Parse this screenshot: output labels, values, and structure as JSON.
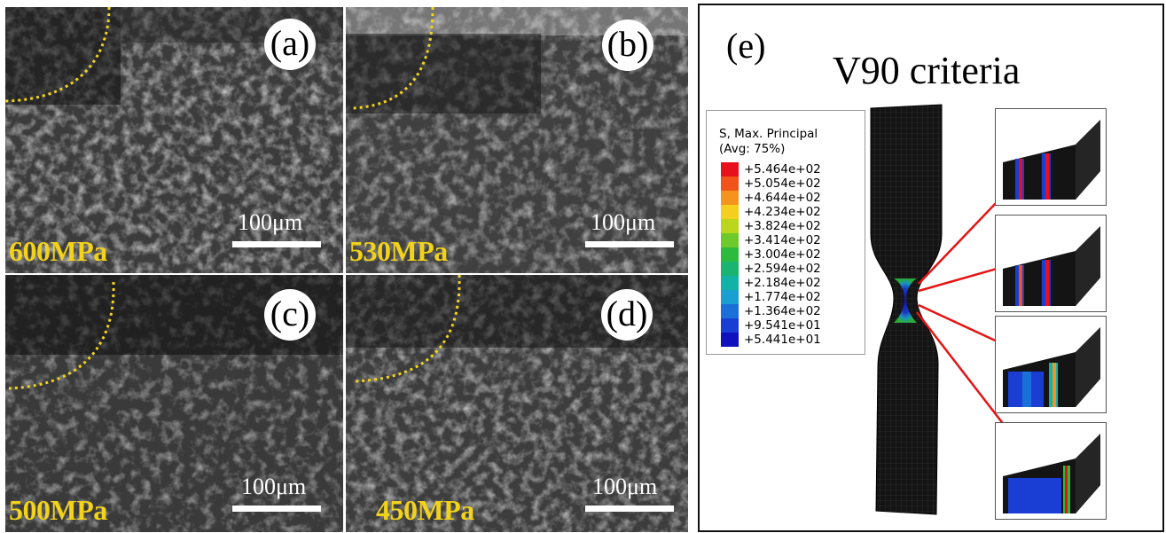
{
  "panels": [
    {
      "id": "a",
      "letter": "(a)",
      "stress": "600MPa",
      "scale": "100μm"
    },
    {
      "id": "b",
      "letter": "(b)",
      "stress": "530MPa",
      "scale": "100μm"
    },
    {
      "id": "c",
      "letter": "(c)",
      "stress": "500MPa",
      "scale": "100μm"
    },
    {
      "id": "d",
      "letter": "(d)",
      "stress": "450MPa",
      "scale": "100μm"
    }
  ],
  "panel_e": {
    "letter": "(e)",
    "title": "V90 criteria",
    "legend": {
      "title_line1": "S, Max. Principal",
      "title_line2": "(Avg: 75%)",
      "entries": [
        {
          "value": "+5.464e+02",
          "color": "#e8101a"
        },
        {
          "value": "+5.054e+02",
          "color": "#f0541a"
        },
        {
          "value": "+4.644e+02",
          "color": "#f4931e"
        },
        {
          "value": "+4.234e+02",
          "color": "#f5cf1d"
        },
        {
          "value": "+3.824e+02",
          "color": "#bcd51d"
        },
        {
          "value": "+3.414e+02",
          "color": "#6ec92a"
        },
        {
          "value": "+3.004e+02",
          "color": "#2dbb3f"
        },
        {
          "value": "+2.594e+02",
          "color": "#19b570"
        },
        {
          "value": "+2.184e+02",
          "color": "#12b3a6"
        },
        {
          "value": "+1.774e+02",
          "color": "#1aa0d0"
        },
        {
          "value": "+1.364e+02",
          "color": "#1a6fd8"
        },
        {
          "value": "+9.541e+01",
          "color": "#1a3ed3"
        },
        {
          "value": "+5.441e+01",
          "color": "#1010bd"
        }
      ]
    }
  },
  "colors": {
    "stress_label": "#f2d21b",
    "dotted_boundary": "#f3d51c",
    "arrow": "#e61414"
  }
}
